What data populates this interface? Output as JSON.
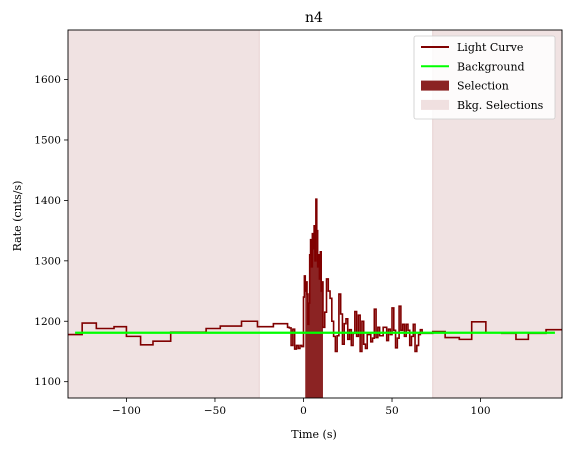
{
  "chart_data": {
    "type": "line",
    "title": "n4",
    "xlabel": "Time (s)",
    "ylabel": "Rate (cnts/s)",
    "xlim": [
      -133,
      146
    ],
    "ylim": [
      1073,
      1682
    ],
    "x_ticks": [
      -100,
      -50,
      0,
      50,
      100
    ],
    "x_tick_labels": [
      "−100",
      "−50",
      "0",
      "50",
      "100"
    ],
    "y_ticks": [
      1100,
      1200,
      1300,
      1400,
      1500,
      1600
    ],
    "y_tick_labels": [
      "1100",
      "1200",
      "1300",
      "1400",
      "1500",
      "1600"
    ],
    "legend_position": "top-right",
    "legend": [
      {
        "label": "Light Curve",
        "kind": "line",
        "color": "#800000"
      },
      {
        "label": "Background",
        "kind": "line",
        "color": "#00ff00"
      },
      {
        "label": "Selection",
        "kind": "patch",
        "color": "#8b2323"
      },
      {
        "label": "Bkg. Selections",
        "kind": "patch",
        "color": "#f0e0e0"
      }
    ],
    "colors": {
      "light_curve": "#800000",
      "background": "#00ff00",
      "selection": "#8b2323",
      "bkg_selection": "#f0e2e2",
      "bkg_selection_edge": "#e2c8c8"
    },
    "background_level": 1181,
    "bkg_selections": [
      [
        -133,
        -25
      ],
      [
        73,
        146
      ]
    ],
    "selection": {
      "range": [
        1,
        11
      ],
      "base": 1073
    },
    "light_curve_steps": [
      [
        -133,
        1178
      ],
      [
        -125,
        1197
      ],
      [
        -117,
        1188
      ],
      [
        -107,
        1191
      ],
      [
        -100,
        1175
      ],
      [
        -92,
        1161
      ],
      [
        -85,
        1167
      ],
      [
        -75,
        1182
      ],
      [
        -55,
        1188
      ],
      [
        -47,
        1192
      ],
      [
        -35,
        1200
      ],
      [
        -26,
        1191
      ],
      [
        -17,
        1196
      ],
      [
        -9,
        1196
      ],
      [
        -9,
        1190
      ],
      [
        -8,
        1189
      ],
      [
        -7,
        1160
      ],
      [
        -6,
        1187
      ],
      [
        -5,
        1154
      ],
      [
        -4,
        1160
      ],
      [
        -3,
        1155
      ],
      [
        -2,
        1160
      ],
      [
        -1,
        1158
      ],
      [
        0,
        1240
      ],
      [
        0.5,
        1275
      ],
      [
        1,
        1250
      ],
      [
        1.5,
        1265
      ],
      [
        2,
        1245
      ],
      [
        2.5,
        1195
      ],
      [
        3,
        1230
      ],
      [
        3.5,
        1310
      ],
      [
        4,
        1335
      ],
      [
        4.5,
        1290
      ],
      [
        5,
        1345
      ],
      [
        5.5,
        1320
      ],
      [
        6,
        1358
      ],
      [
        6.5,
        1300
      ],
      [
        7,
        1402
      ],
      [
        7.5,
        1350
      ],
      [
        8,
        1290
      ],
      [
        8.5,
        1310
      ],
      [
        9,
        1270
      ],
      [
        9.5,
        1315
      ],
      [
        10,
        1250
      ],
      [
        10.5,
        1265
      ],
      [
        11,
        1190
      ],
      [
        12,
        1215
      ],
      [
        13,
        1270
      ],
      [
        14,
        1250
      ],
      [
        15,
        1238
      ],
      [
        16,
        1200
      ],
      [
        17,
        1175
      ],
      [
        18,
        1150
      ],
      [
        19,
        1176
      ],
      [
        20,
        1245
      ],
      [
        21,
        1212
      ],
      [
        22,
        1162
      ],
      [
        23,
        1196
      ],
      [
        24,
        1204
      ],
      [
        25,
        1170
      ],
      [
        26,
        1186
      ],
      [
        27,
        1160
      ],
      [
        28,
        1180
      ],
      [
        29,
        1216
      ],
      [
        30,
        1175
      ],
      [
        31,
        1210
      ],
      [
        32,
        1150
      ],
      [
        33,
        1200
      ],
      [
        34,
        1162
      ],
      [
        35,
        1155
      ],
      [
        36,
        1178
      ],
      [
        37,
        1178
      ],
      [
        38,
        1166
      ],
      [
        39,
        1172
      ],
      [
        40,
        1220
      ],
      [
        41,
        1173
      ],
      [
        42,
        1190
      ],
      [
        43,
        1176
      ],
      [
        44,
        1176
      ],
      [
        45,
        1190
      ],
      [
        46,
        1190
      ],
      [
        47,
        1168
      ],
      [
        48,
        1187
      ],
      [
        49,
        1178
      ],
      [
        50,
        1222
      ],
      [
        51,
        1185
      ],
      [
        52,
        1156
      ],
      [
        53,
        1172
      ],
      [
        54,
        1225
      ],
      [
        55,
        1185
      ],
      [
        56,
        1195
      ],
      [
        57,
        1175
      ],
      [
        58,
        1195
      ],
      [
        59,
        1185
      ],
      [
        60,
        1160
      ],
      [
        61,
        1175
      ],
      [
        62,
        1195
      ],
      [
        63,
        1150
      ],
      [
        64,
        1160
      ],
      [
        65,
        1178
      ],
      [
        66,
        1186
      ],
      [
        67,
        1180
      ],
      [
        73,
        1183
      ],
      [
        80,
        1173
      ],
      [
        88,
        1170
      ],
      [
        95,
        1199
      ],
      [
        103,
        1181
      ],
      [
        112,
        1180
      ],
      [
        120,
        1170
      ],
      [
        127,
        1180
      ],
      [
        137,
        1186
      ],
      [
        146,
        1186
      ]
    ]
  }
}
